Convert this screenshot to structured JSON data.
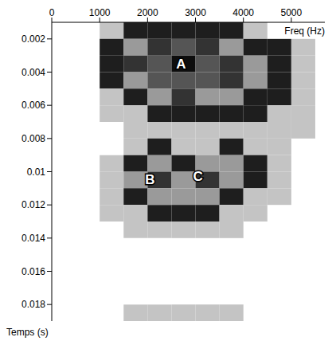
{
  "chart_data": {
    "type": "heatmap",
    "x_label": "Freq (Hz)",
    "y_label": "Temps (s)",
    "xlim": [
      0,
      5700
    ],
    "ylim": [
      0.001,
      0.019
    ],
    "xticks": [
      0,
      1000,
      2000,
      3000,
      4000,
      5000
    ],
    "yticks": [
      0.002,
      0.004,
      0.006,
      0.008,
      0.01,
      0.012,
      0.014,
      0.016,
      0.018
    ],
    "x_edges": [
      0,
      500,
      1000,
      1500,
      2000,
      2500,
      3000,
      3500,
      4000,
      4500,
      5000,
      5500,
      5700
    ],
    "y_edges": [
      0.001,
      0.002,
      0.003,
      0.004,
      0.005,
      0.006,
      0.007,
      0.008,
      0.009,
      0.01,
      0.011,
      0.012,
      0.013,
      0.014,
      0.015,
      0.016,
      0.017,
      0.018,
      0.019
    ],
    "z": [
      [
        0,
        0,
        1,
        2,
        2,
        2,
        2,
        2,
        1,
        0,
        0,
        0
      ],
      [
        0,
        0,
        2,
        3,
        4,
        5,
        4,
        3,
        2,
        2,
        1,
        0
      ],
      [
        0,
        0,
        2,
        4,
        5,
        6,
        5,
        4,
        3,
        2,
        1,
        0
      ],
      [
        0,
        0,
        2,
        3,
        5,
        5,
        5,
        4,
        3,
        2,
        1,
        0
      ],
      [
        0,
        0,
        1,
        2,
        3,
        4,
        3,
        3,
        2,
        2,
        1,
        0
      ],
      [
        0,
        0,
        1,
        1,
        2,
        2,
        2,
        2,
        2,
        1,
        1,
        0
      ],
      [
        0,
        0,
        0,
        1,
        1,
        1,
        1,
        1,
        1,
        1,
        1,
        0
      ],
      [
        0,
        0,
        0,
        1,
        2,
        1,
        1,
        2,
        1,
        1,
        0,
        0
      ],
      [
        0,
        0,
        1,
        2,
        3,
        2,
        3,
        3,
        2,
        1,
        0,
        0
      ],
      [
        0,
        0,
        1,
        3,
        4,
        3,
        4,
        3,
        2,
        1,
        0,
        0
      ],
      [
        0,
        0,
        1,
        2,
        3,
        3,
        3,
        2,
        1,
        1,
        0,
        0
      ],
      [
        0,
        0,
        1,
        1,
        2,
        2,
        2,
        1,
        1,
        0,
        0,
        0
      ],
      [
        0,
        0,
        0,
        1,
        1,
        1,
        1,
        1,
        0,
        0,
        0,
        0
      ],
      [
        0,
        0,
        0,
        0,
        0,
        0,
        0,
        0,
        0,
        0,
        0,
        0
      ],
      [
        0,
        0,
        0,
        0,
        0,
        0,
        0,
        0,
        0,
        0,
        0,
        0
      ],
      [
        0,
        0,
        0,
        0,
        0,
        0,
        0,
        0,
        0,
        0,
        0,
        0
      ],
      [
        0,
        0,
        0,
        0,
        0,
        0,
        0,
        0,
        0,
        0,
        0,
        0
      ],
      [
        0,
        0,
        0,
        1,
        1,
        1,
        1,
        1,
        0,
        0,
        0,
        0
      ]
    ],
    "annotations": [
      {
        "text": "A",
        "x": 2700,
        "y": 0.0035
      },
      {
        "text": "B",
        "x": 2050,
        "y": 0.0105
      },
      {
        "text": "C",
        "x": 3050,
        "y": 0.0103
      }
    ]
  }
}
